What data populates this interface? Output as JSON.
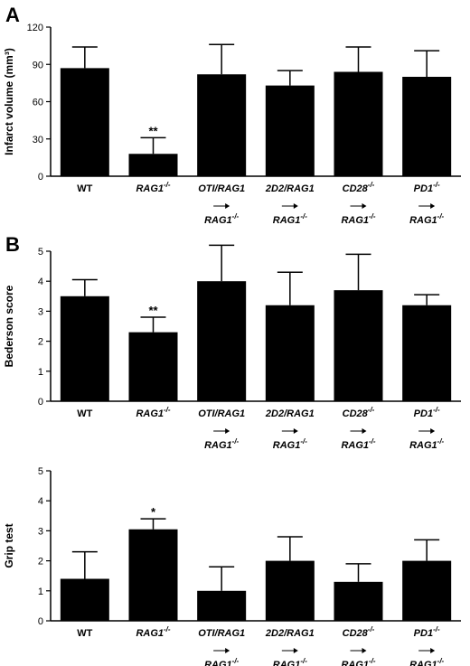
{
  "chart_data": [
    {
      "type": "bar",
      "panel_letter": "A",
      "ylabel": "Infarct volume (mm³)",
      "ylim": [
        0,
        120
      ],
      "yticks": [
        0,
        30,
        60,
        90,
        120
      ],
      "categories": [
        {
          "label": "WT",
          "sup": "",
          "italic": false,
          "arrow": false,
          "target": "",
          "target_sup": ""
        },
        {
          "label": "RAG1",
          "sup": "-/-",
          "italic": true,
          "arrow": false,
          "target": "",
          "target_sup": ""
        },
        {
          "label": "OTI/RAG1",
          "sup": "",
          "italic": true,
          "arrow": true,
          "target": "RAG1",
          "target_sup": "-/-"
        },
        {
          "label": "2D2/RAG1",
          "sup": "",
          "italic": true,
          "arrow": true,
          "target": "RAG1",
          "target_sup": "-/-"
        },
        {
          "label": "CD28",
          "sup": "-/-",
          "italic": true,
          "arrow": true,
          "target": "RAG1",
          "target_sup": "-/-"
        },
        {
          "label": "PD1",
          "sup": "-/-",
          "italic": true,
          "arrow": true,
          "target": "RAG1",
          "target_sup": "-/-"
        }
      ],
      "values": [
        87,
        18,
        82,
        73,
        84,
        80
      ],
      "errors": [
        17,
        13,
        24,
        12,
        20,
        21
      ],
      "significance": [
        "",
        "**",
        "",
        "",
        "",
        ""
      ]
    },
    {
      "type": "bar",
      "panel_letter": "B",
      "ylabel": "Bederson score",
      "ylim": [
        0,
        5
      ],
      "yticks": [
        0,
        1,
        2,
        3,
        4,
        5
      ],
      "categories": [
        {
          "label": "WT",
          "sup": "",
          "italic": false,
          "arrow": false,
          "target": "",
          "target_sup": ""
        },
        {
          "label": "RAG1",
          "sup": "-/-",
          "italic": true,
          "arrow": false,
          "target": "",
          "target_sup": ""
        },
        {
          "label": "OTI/RAG1",
          "sup": "",
          "italic": true,
          "arrow": true,
          "target": "RAG1",
          "target_sup": "-/-"
        },
        {
          "label": "2D2/RAG1",
          "sup": "",
          "italic": true,
          "arrow": true,
          "target": "RAG1",
          "target_sup": "-/-"
        },
        {
          "label": "CD28",
          "sup": "-/-",
          "italic": true,
          "arrow": true,
          "target": "RAG1",
          "target_sup": "-/-"
        },
        {
          "label": "PD1",
          "sup": "-/-",
          "italic": true,
          "arrow": true,
          "target": "RAG1",
          "target_sup": "-/-"
        }
      ],
      "values": [
        3.5,
        2.3,
        4.0,
        3.2,
        3.7,
        3.2
      ],
      "errors": [
        0.55,
        0.5,
        1.2,
        1.1,
        1.2,
        0.35
      ],
      "significance": [
        "",
        "**",
        "",
        "",
        "",
        ""
      ]
    },
    {
      "type": "bar",
      "panel_letter": "",
      "ylabel": "Grip test",
      "ylim": [
        0,
        5
      ],
      "yticks": [
        0,
        1,
        2,
        3,
        4,
        5
      ],
      "categories": [
        {
          "label": "WT",
          "sup": "",
          "italic": false,
          "arrow": false,
          "target": "",
          "target_sup": ""
        },
        {
          "label": "RAG1",
          "sup": "-/-",
          "italic": true,
          "arrow": false,
          "target": "",
          "target_sup": ""
        },
        {
          "label": "OTI/RAG1",
          "sup": "",
          "italic": true,
          "arrow": true,
          "target": "RAG1",
          "target_sup": "-/-"
        },
        {
          "label": "2D2/RAG1",
          "sup": "",
          "italic": true,
          "arrow": true,
          "target": "RAG1",
          "target_sup": "-/-"
        },
        {
          "label": "CD28",
          "sup": "-/-",
          "italic": true,
          "arrow": true,
          "target": "RAG1",
          "target_sup": "-/-"
        },
        {
          "label": "PD1",
          "sup": "-/-",
          "italic": true,
          "arrow": true,
          "target": "RAG1",
          "target_sup": "-/-"
        }
      ],
      "values": [
        1.4,
        3.05,
        1.0,
        2.0,
        1.3,
        2.0
      ],
      "errors": [
        0.9,
        0.35,
        0.8,
        0.8,
        0.6,
        0.7
      ],
      "significance": [
        "",
        "*",
        "",
        "",
        "",
        ""
      ]
    }
  ],
  "colors": {
    "bar": "#000000",
    "axis": "#000000",
    "background": "#ffffff"
  }
}
